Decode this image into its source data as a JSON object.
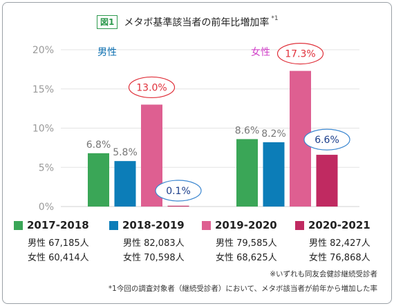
{
  "header": {
    "badge": "図1",
    "title": "メタボ基準該当者の前年比増加率",
    "title_note": "*1"
  },
  "colors": {
    "s2017": "#3aa657",
    "s2018": "#0c7db8",
    "s2019": "#de5f91",
    "s2020": "#c02a61",
    "male_label": "#0c6fb0",
    "female_label": "#d040c8",
    "highlight_red": "#e0303a",
    "highlight_blue": "#3a86d0",
    "value_gray": "#777777",
    "axis_gray": "#999999"
  },
  "chart_data": {
    "type": "bar",
    "title": "メタボ基準該当者の前年比増加率",
    "categories": [
      "男性",
      "女性"
    ],
    "yticks": [
      "20%",
      "15%",
      "10%",
      "5%",
      "0%"
    ],
    "ylim": [
      0,
      20
    ],
    "grid": true,
    "series": [
      {
        "name": "2017-2018",
        "values": [
          6.8,
          8.6
        ],
        "labels": [
          "6.8%",
          "8.6%"
        ]
      },
      {
        "name": "2018-2019",
        "values": [
          5.8,
          8.2
        ],
        "labels": [
          "5.8%",
          "8.2%"
        ]
      },
      {
        "name": "2019-2020",
        "values": [
          13.0,
          17.3
        ],
        "labels": [
          "13.0%",
          "17.3%"
        ]
      },
      {
        "name": "2020-2021",
        "values": [
          0.1,
          6.6
        ],
        "labels": [
          "0.1%",
          "6.6%"
        ]
      }
    ]
  },
  "legend": [
    {
      "label": "2017-2018",
      "male": "男性 67,185人",
      "female": "女性 60,414人"
    },
    {
      "label": "2018-2019",
      "male": "男性 82,083人",
      "female": "女性 70,598人"
    },
    {
      "label": "2019-2020",
      "male": "男性 79,585人",
      "female": "女性 68,625人"
    },
    {
      "label": "2020-2021",
      "male": "男性 82,427人",
      "female": "女性 76,868人"
    }
  ],
  "notes": {
    "note1": "※いずれも同友会健診継続受診者",
    "note2": "*1今回の調査対象者（継続受診者）において、メタボ該当者が前年から増加した率"
  }
}
